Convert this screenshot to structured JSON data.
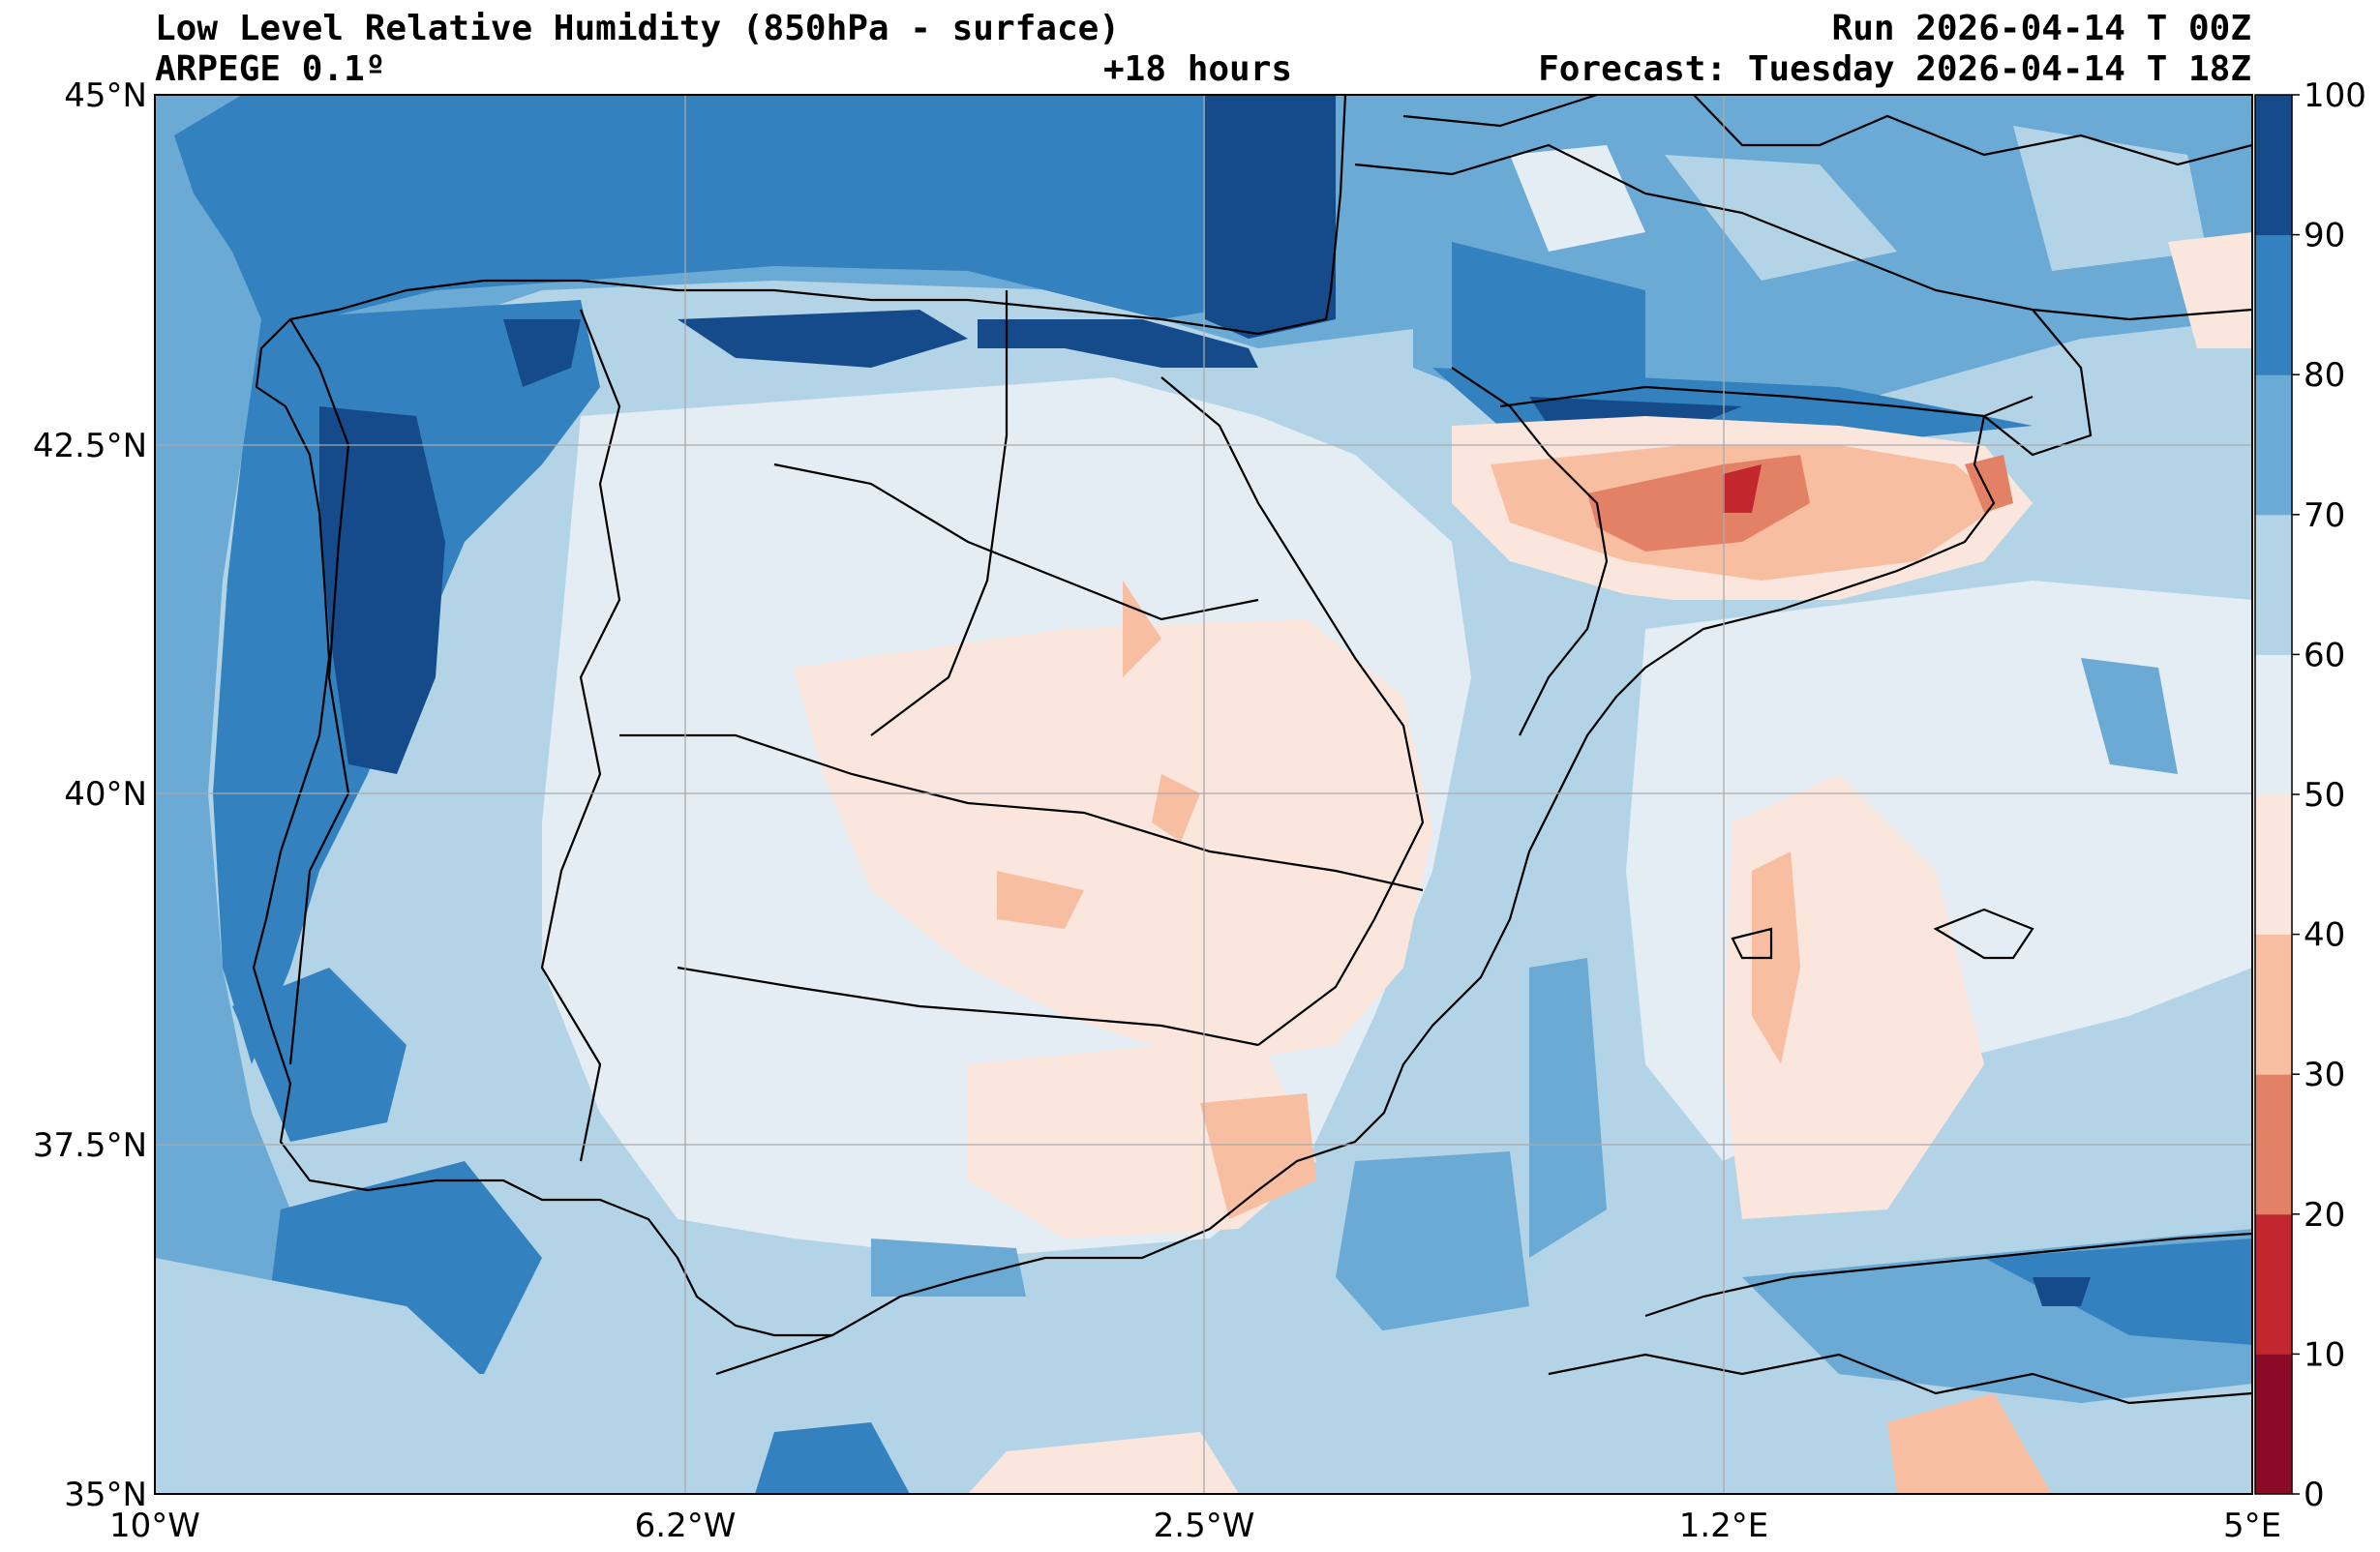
{
  "header": {
    "title": "Low Level Relative Humidity (850hPa - surface)",
    "model": "ARPEGE 0.1º",
    "lead": "+18 hours",
    "run": "Run 2026-04-14 T 00Z",
    "forecast": "Forecast: Tuesday 2026-04-14 T 18Z"
  },
  "map": {
    "lon_labels": [
      "10°W",
      "6.2°W",
      "2.5°W",
      "1.2°E",
      "5°E"
    ],
    "lat_labels": [
      "45°N",
      "42.5°N",
      "40°N",
      "37.5°N",
      "35°N"
    ],
    "extent": {
      "lon": [
        -10,
        5
      ],
      "lat": [
        35,
        45
      ]
    }
  },
  "colorbar": {
    "levels": [
      0,
      10,
      20,
      30,
      40,
      50,
      60,
      70,
      80,
      90,
      100
    ],
    "colors": [
      "#8b0a25",
      "#c1272d",
      "#e38167",
      "#f8bea1",
      "#fae6dd",
      "#e5edf4",
      "#b3d4e7",
      "#6aaad4",
      "#3382bf",
      "#154b8a"
    ]
  }
}
